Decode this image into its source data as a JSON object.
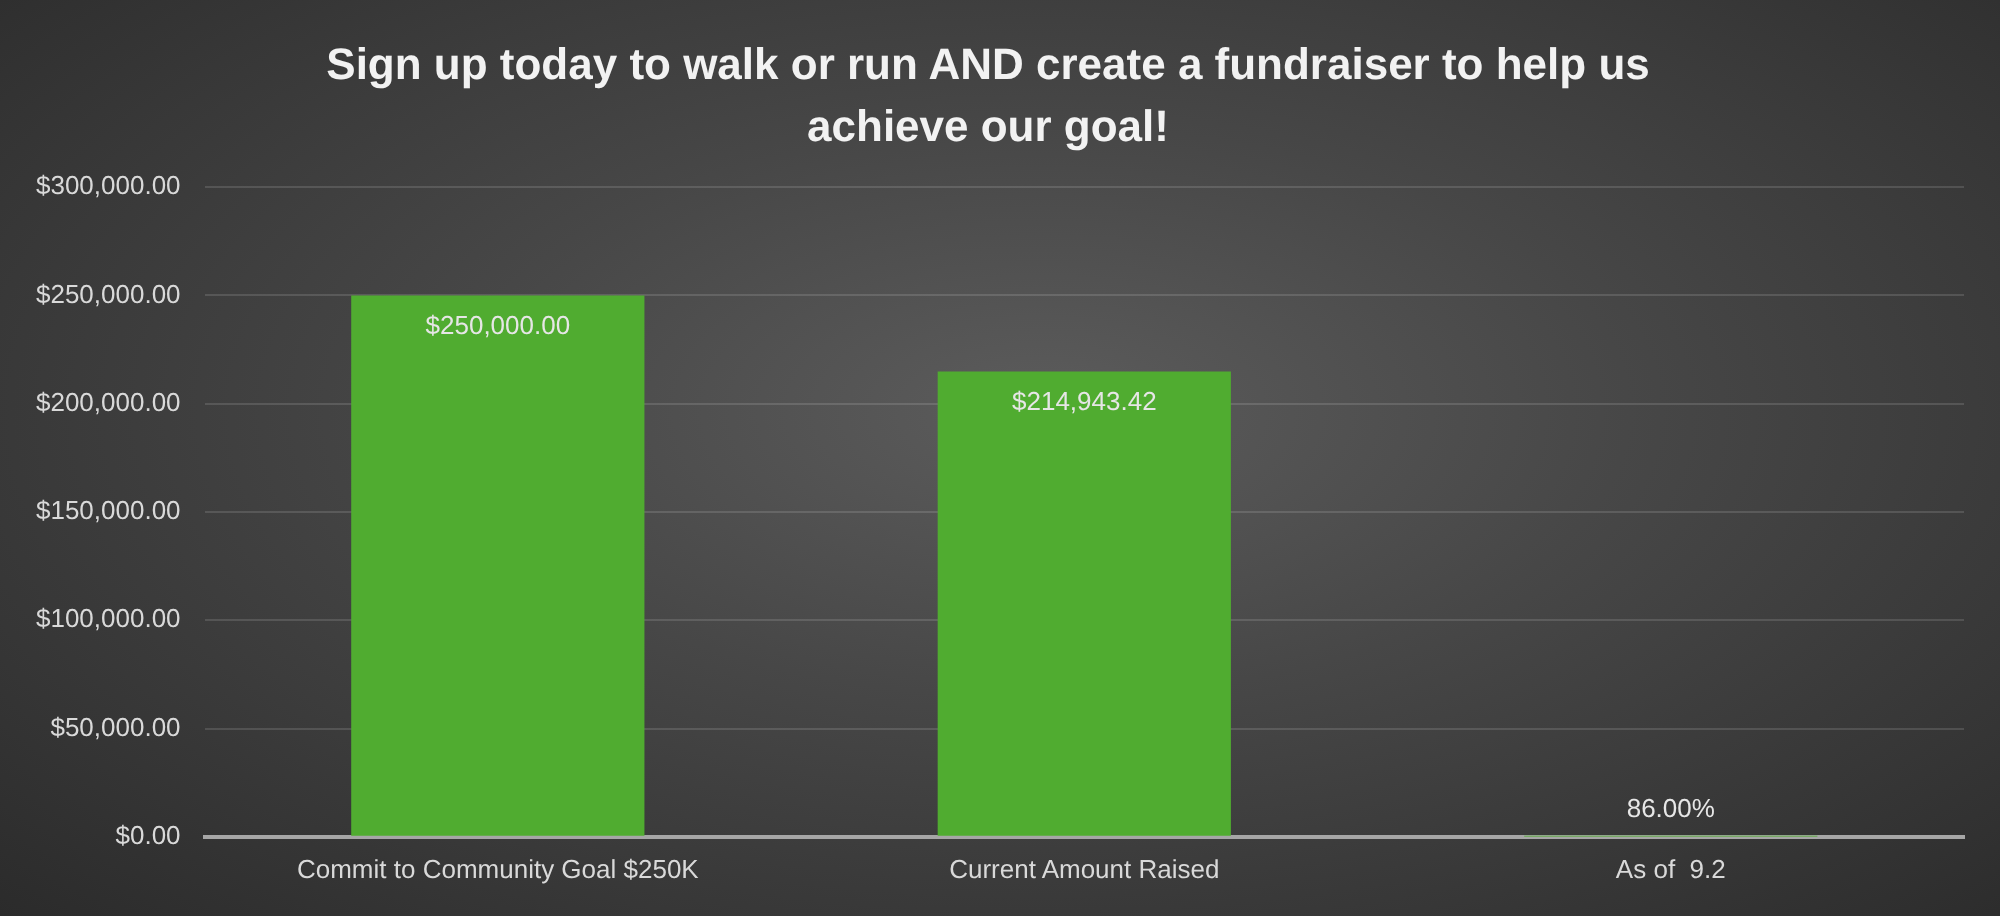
{
  "chart_data": {
    "type": "bar",
    "title": "Sign up today to walk or run AND create a fundraiser to help us achieve our goal!",
    "categories": [
      "Commit to Community Goal $250K",
      "Current Amount Raised",
      "As of  9.2"
    ],
    "values": [
      250000,
      214943.42,
      0.86
    ],
    "value_labels": [
      "$250,000.00",
      "$214,943.42",
      "86.00%"
    ],
    "color": "#50ac30",
    "ylim": [
      0,
      300000
    ],
    "yticks": [
      {
        "value": 0,
        "label": "$0.00"
      },
      {
        "value": 50000,
        "label": "$50,000.00"
      },
      {
        "value": 100000,
        "label": "$100,000.00"
      },
      {
        "value": 150000,
        "label": "$150,000.00"
      },
      {
        "value": 200000,
        "label": "$200,000.00"
      },
      {
        "value": 250000,
        "label": "$250,000.00"
      },
      {
        "value": 300000,
        "label": "$300,000.00"
      }
    ],
    "grid": "y"
  }
}
